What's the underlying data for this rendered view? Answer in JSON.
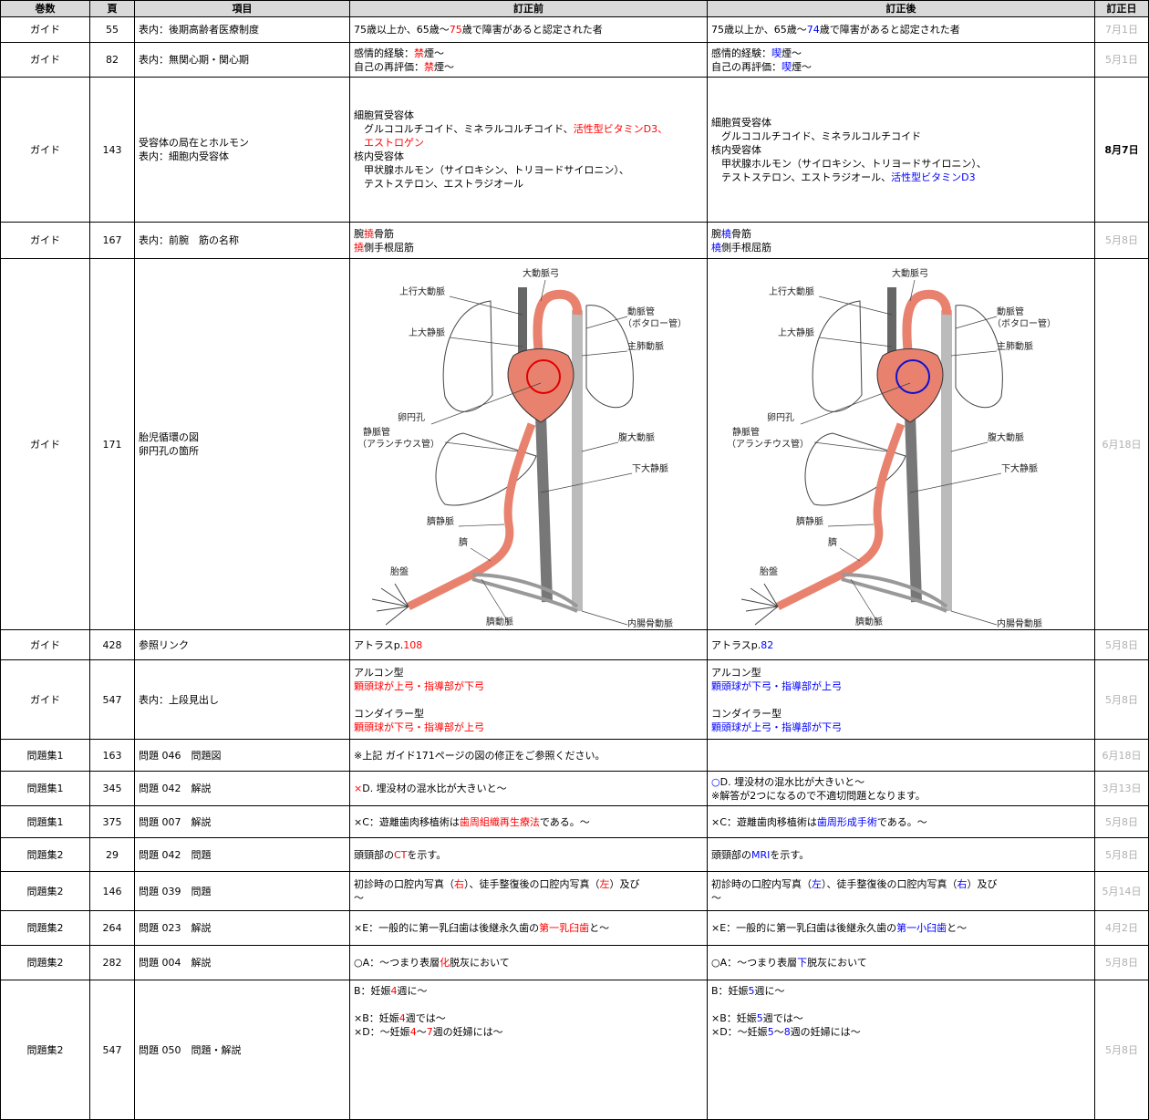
{
  "header": [
    "巻数",
    "頁",
    "項目",
    "訂正前",
    "訂正後",
    "訂正日"
  ],
  "figure_labels": [
    "大動脈弓",
    "上行大動脈",
    "動脈管",
    "（ボタロー管）",
    "上大静脈",
    "主肺動脈",
    "卵円孔",
    "静脈管",
    "（アランチウス管）",
    "腹大動脈",
    "下大静脈",
    "臍静脈",
    "臍",
    "胎盤",
    "臍動脈",
    "内腸骨動脈"
  ],
  "rows": [
    {
      "volume": "ガイド",
      "page": 55,
      "item": [
        "表内：後期高齢者医療制度"
      ],
      "before": [
        [
          "75歳以上か、65歳〜",
          {
            "text": "75",
            "color": "#ff0000"
          },
          "歳で障害があると認定された者"
        ]
      ],
      "after": [
        [
          "75歳以上か、65歳〜",
          {
            "text": "74",
            "color": "#0000ff"
          },
          "歳で障害があると認定された者"
        ]
      ],
      "date": "7月1日",
      "date_color": "#b0b0b0"
    },
    {
      "volume": "ガイド",
      "page": 82,
      "item": [
        "表内：無関心期・関心期"
      ],
      "before": [
        [
          "感情的経験：",
          {
            "text": "禁",
            "color": "#ff0000"
          },
          "煙〜"
        ],
        [
          "自己の再評価：",
          {
            "text": "禁",
            "color": "#ff0000"
          },
          "煙〜"
        ]
      ],
      "after": [
        [
          "感情的経験：",
          {
            "text": "喫",
            "color": "#0000ff"
          },
          "煙〜"
        ],
        [
          "自己の再評価：",
          {
            "text": "喫",
            "color": "#0000ff"
          },
          "煙〜"
        ]
      ],
      "date": "5月1日",
      "date_color": "#b0b0b0"
    },
    {
      "volume": "ガイド",
      "page": 143,
      "item": [
        "受容体の局在とホルモン",
        "表内：細胞内受容体"
      ],
      "before": [
        [
          "細胞質受容体"
        ],
        [
          "　グルココルチコイド、ミネラルコルチコイド、",
          {
            "text": "活性型ビタミンD3、",
            "color": "#ff0000"
          }
        ],
        [
          {
            "text": "　エストロゲン",
            "color": "#ff0000"
          }
        ],
        [
          "核内受容体"
        ],
        [
          "　甲状腺ホルモン（サイロキシン、トリヨードサイロニン）、"
        ],
        [
          "　テストステロン、エストラジオール"
        ]
      ],
      "after": [
        [
          "細胞質受容体"
        ],
        [
          "　グルココルチコイド、ミネラルコルチコイド"
        ],
        [
          "核内受容体"
        ],
        [
          "　甲状腺ホルモン（サイロキシン、トリヨードサイロニン）、"
        ],
        [
          "　テストステロン、エストラジオール、",
          {
            "text": "活性型ビタミンD3",
            "color": "#0000ff"
          }
        ]
      ],
      "date": "8月7日",
      "date_color": "#000000",
      "date_bold": true
    },
    {
      "volume": "ガイド",
      "page": 167,
      "item": [
        "表内：前腕　筋の名称"
      ],
      "before": [
        [
          "腕",
          {
            "text": "撓",
            "color": "#ff0000"
          },
          "骨筋"
        ],
        [
          {
            "text": "撓",
            "color": "#ff0000"
          },
          "側手根屈筋"
        ]
      ],
      "after": [
        [
          "腕",
          {
            "text": "橈",
            "color": "#0000ff"
          },
          "骨筋"
        ],
        [
          {
            "text": "橈",
            "color": "#0000ff"
          },
          "側手根屈筋"
        ]
      ],
      "date": "5月8日",
      "date_color": "#b0b0b0"
    },
    {
      "volume": "ガイド",
      "page": 171,
      "item": [
        "胎児循環の図",
        "卵円孔の箇所"
      ],
      "before": {
        "figure": {
          "circle_color": "#e00000"
        }
      },
      "after": {
        "figure": {
          "circle_color": "#1010d0"
        }
      },
      "date": "6月18日",
      "date_color": "#b0b0b0"
    },
    {
      "volume": "ガイド",
      "page": 428,
      "item": [
        "参照リンク"
      ],
      "before": [
        [
          "アトラスp.",
          {
            "text": "108",
            "color": "#ff0000"
          }
        ]
      ],
      "after": [
        [
          "アトラスp.",
          {
            "text": "82",
            "color": "#0000ff"
          }
        ]
      ],
      "date": "5月8日",
      "date_color": "#b0b0b0"
    },
    {
      "volume": "ガイド",
      "page": 547,
      "item": [
        "表内：上段見出し"
      ],
      "before": [
        [
          "アルコン型"
        ],
        [
          {
            "text": "顆頭球が上弓・指導部が下弓",
            "color": "#ff0000"
          }
        ],
        [],
        [
          "コンダイラー型"
        ],
        [
          {
            "text": "顆頭球が下弓・指導部が上弓",
            "color": "#ff0000"
          }
        ]
      ],
      "after": [
        [
          "アルコン型"
        ],
        [
          {
            "text": "顆頭球が下弓・指導部が上弓",
            "color": "#0000ff"
          }
        ],
        [],
        [
          "コンダイラー型"
        ],
        [
          {
            "text": "顆頭球が上弓・指導部が下弓",
            "color": "#0000ff"
          }
        ]
      ],
      "date": "5月8日",
      "date_color": "#b0b0b0"
    },
    {
      "volume": "問題集1",
      "page": 163,
      "item": [
        "問題 046　問題図"
      ],
      "before": [
        [
          "※上記 ガイド171ページの図の修正をご参照ください。"
        ]
      ],
      "date": "6月18日",
      "date_color": "#b0b0b0"
    },
    {
      "volume": "問題集1",
      "page": 345,
      "item": [
        "問題 042　解説"
      ],
      "before": [
        [
          {
            "text": "×",
            "color": "#ff0000"
          },
          "D. 埋没材の混水比が大きいと〜"
        ]
      ],
      "after": [
        [
          {
            "text": "○",
            "color": "#0000ff"
          },
          "D. 埋没材の混水比が大きいと〜"
        ],
        [
          "※解答が2つになるので不適切問題となります。"
        ]
      ],
      "date": "3月13日",
      "date_color": "#b0b0b0"
    },
    {
      "volume": "問題集1",
      "page": 375,
      "item": [
        "問題 007　解説"
      ],
      "before": [
        [
          "×C：遊離歯肉移植術は",
          {
            "text": "歯周組織再生療法",
            "color": "#ff0000"
          },
          "である。〜"
        ]
      ],
      "after": [
        [
          "×C：遊離歯肉移植術は",
          {
            "text": "歯周形成手術",
            "color": "#0000ff"
          },
          "である。〜"
        ]
      ],
      "date": "5月8日",
      "date_color": "#b0b0b0"
    },
    {
      "volume": "問題集2",
      "page": 29,
      "item": [
        "問題 042　問題"
      ],
      "before": [
        [
          "頭頸部の",
          {
            "text": "CT",
            "color": "#ff0000"
          },
          "を示す。"
        ]
      ],
      "after": [
        [
          "頭頸部の",
          {
            "text": "MRI",
            "color": "#0000ff"
          },
          "を示す。"
        ]
      ],
      "date": "5月8日",
      "date_color": "#b0b0b0"
    },
    {
      "volume": "問題集2",
      "page": 146,
      "item": [
        "問題 039　問題"
      ],
      "before": [
        [
          "初診時の口腔内写真（",
          {
            "text": "右",
            "color": "#ff0000"
          },
          "）、徒手整復後の口腔内写真（",
          {
            "text": "左",
            "color": "#ff0000"
          },
          "）及び"
        ],
        [
          "〜"
        ]
      ],
      "after": [
        [
          "初診時の口腔内写真（",
          {
            "text": "左",
            "color": "#0000ff"
          },
          "）、徒手整復後の口腔内写真（",
          {
            "text": "右",
            "color": "#0000ff"
          },
          "）及び"
        ],
        [
          "〜"
        ]
      ],
      "date": "5月14日",
      "date_color": "#b0b0b0"
    },
    {
      "volume": "問題集2",
      "page": 264,
      "item": [
        "問題 023　解説"
      ],
      "before": [
        [
          "×E：一般的に第一乳臼歯は後継永久歯の",
          {
            "text": "第一乳臼歯",
            "color": "#ff0000"
          },
          "と〜"
        ]
      ],
      "after": [
        [
          "×E：一般的に第一乳臼歯は後継永久歯の",
          {
            "text": "第一小臼歯",
            "color": "#0000ff"
          },
          "と〜"
        ]
      ],
      "date": "4月2日",
      "date_color": "#b0b0b0"
    },
    {
      "volume": "問題集2",
      "page": 282,
      "item": [
        "問題 004　解説"
      ],
      "before": [
        [
          "○A：〜つまり表層",
          {
            "text": "化",
            "color": "#ff0000"
          },
          "脱灰において"
        ]
      ],
      "after": [
        [
          "○A：〜つまり表層",
          {
            "text": "下",
            "color": "#0000ff"
          },
          "脱灰において"
        ]
      ],
      "date": "5月8日",
      "date_color": "#b0b0b0"
    },
    {
      "volume": "問題集2",
      "page": 547,
      "item": [
        "問題 050　問題・解説"
      ],
      "before": [
        [
          "B：妊娠",
          {
            "text": "4",
            "color": "#ff0000"
          },
          "週に〜"
        ],
        [],
        [
          "×B：妊娠",
          {
            "text": "4",
            "color": "#ff0000"
          },
          "週では〜"
        ],
        [
          "×D：〜妊娠",
          {
            "text": "4",
            "color": "#ff0000"
          },
          "〜",
          {
            "text": "7",
            "color": "#ff0000"
          },
          "週の妊婦には〜"
        ]
      ],
      "after": [
        [
          "B：妊娠",
          {
            "text": "5",
            "color": "#0000ff"
          },
          "週に〜"
        ],
        [],
        [
          "×B：妊娠",
          {
            "text": "5",
            "color": "#0000ff"
          },
          "週では〜"
        ],
        [
          "×D：〜妊娠",
          {
            "text": "5",
            "color": "#0000ff"
          },
          "〜",
          {
            "text": "8",
            "color": "#0000ff"
          },
          "週の妊婦には〜"
        ]
      ],
      "date": "5月8日",
      "date_color": "#b0b0b0"
    }
  ]
}
